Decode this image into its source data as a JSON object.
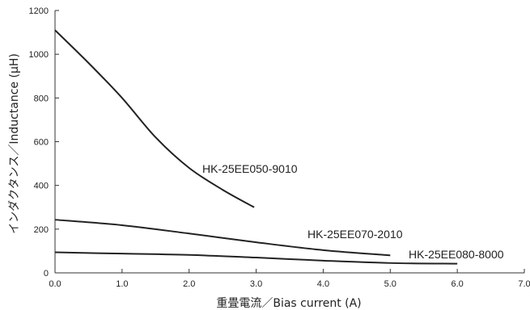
{
  "chart_data": {
    "type": "line",
    "title": "",
    "xlabel": "重畳電流／Bias current (A)",
    "ylabel": "インダクタンス／Inductance (μH)",
    "xlim": [
      0,
      7
    ],
    "ylim": [
      0,
      1200
    ],
    "xticks": [
      "0.0",
      "1.0",
      "2.0",
      "3.0",
      "4.0",
      "5.0",
      "6.0",
      "7.0"
    ],
    "yticks": [
      "0",
      "200",
      "400",
      "600",
      "800",
      "1000",
      "1200"
    ],
    "grid": false,
    "legend": "none",
    "series": [
      {
        "name": "HK-25EE050-9010",
        "color": "#222222",
        "points": [
          [
            0.0,
            1110
          ],
          [
            0.5,
            960
          ],
          [
            1.0,
            800
          ],
          [
            1.5,
            620
          ],
          [
            2.0,
            480
          ],
          [
            2.5,
            380
          ],
          [
            2.97,
            300
          ]
        ]
      },
      {
        "name": "HK-25EE070-2010",
        "color": "#222222",
        "points": [
          [
            0.0,
            243
          ],
          [
            1.0,
            218
          ],
          [
            2.0,
            180
          ],
          [
            3.0,
            140
          ],
          [
            4.0,
            104
          ],
          [
            5.0,
            80
          ]
        ]
      },
      {
        "name": "HK-25EE080-8000",
        "color": "#222222",
        "points": [
          [
            0.0,
            94
          ],
          [
            1.0,
            88
          ],
          [
            2.0,
            82
          ],
          [
            3.0,
            70
          ],
          [
            4.0,
            56
          ],
          [
            5.0,
            45
          ],
          [
            6.0,
            42
          ]
        ]
      }
    ]
  }
}
